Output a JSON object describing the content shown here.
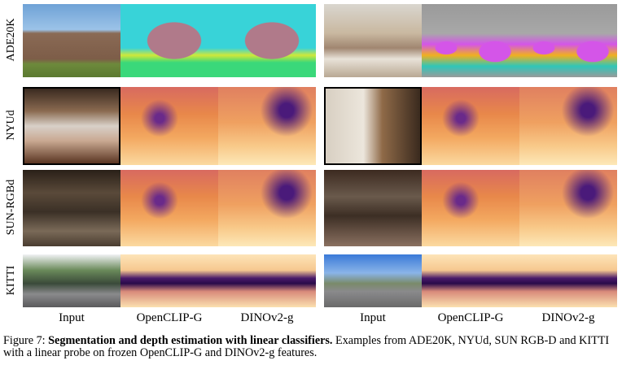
{
  "figure": {
    "rows": [
      "ADE20K",
      "NYUd",
      "SUN-RGBd",
      "KITTI"
    ],
    "columns_left": [
      "Input",
      "OpenCLIP-G",
      "DINOv2-g"
    ],
    "columns_right": [
      "Input",
      "OpenCLIP-G",
      "DINOv2-g"
    ]
  },
  "caption": {
    "label": "Figure 7:",
    "title": "Segmentation and depth estimation with linear classifiers.",
    "text": "Examples from ADE20K, NYUd, SUN RGB-D and KITTI with a linear probe on frozen OpenCLIP-G and DINOv2-g features."
  }
}
